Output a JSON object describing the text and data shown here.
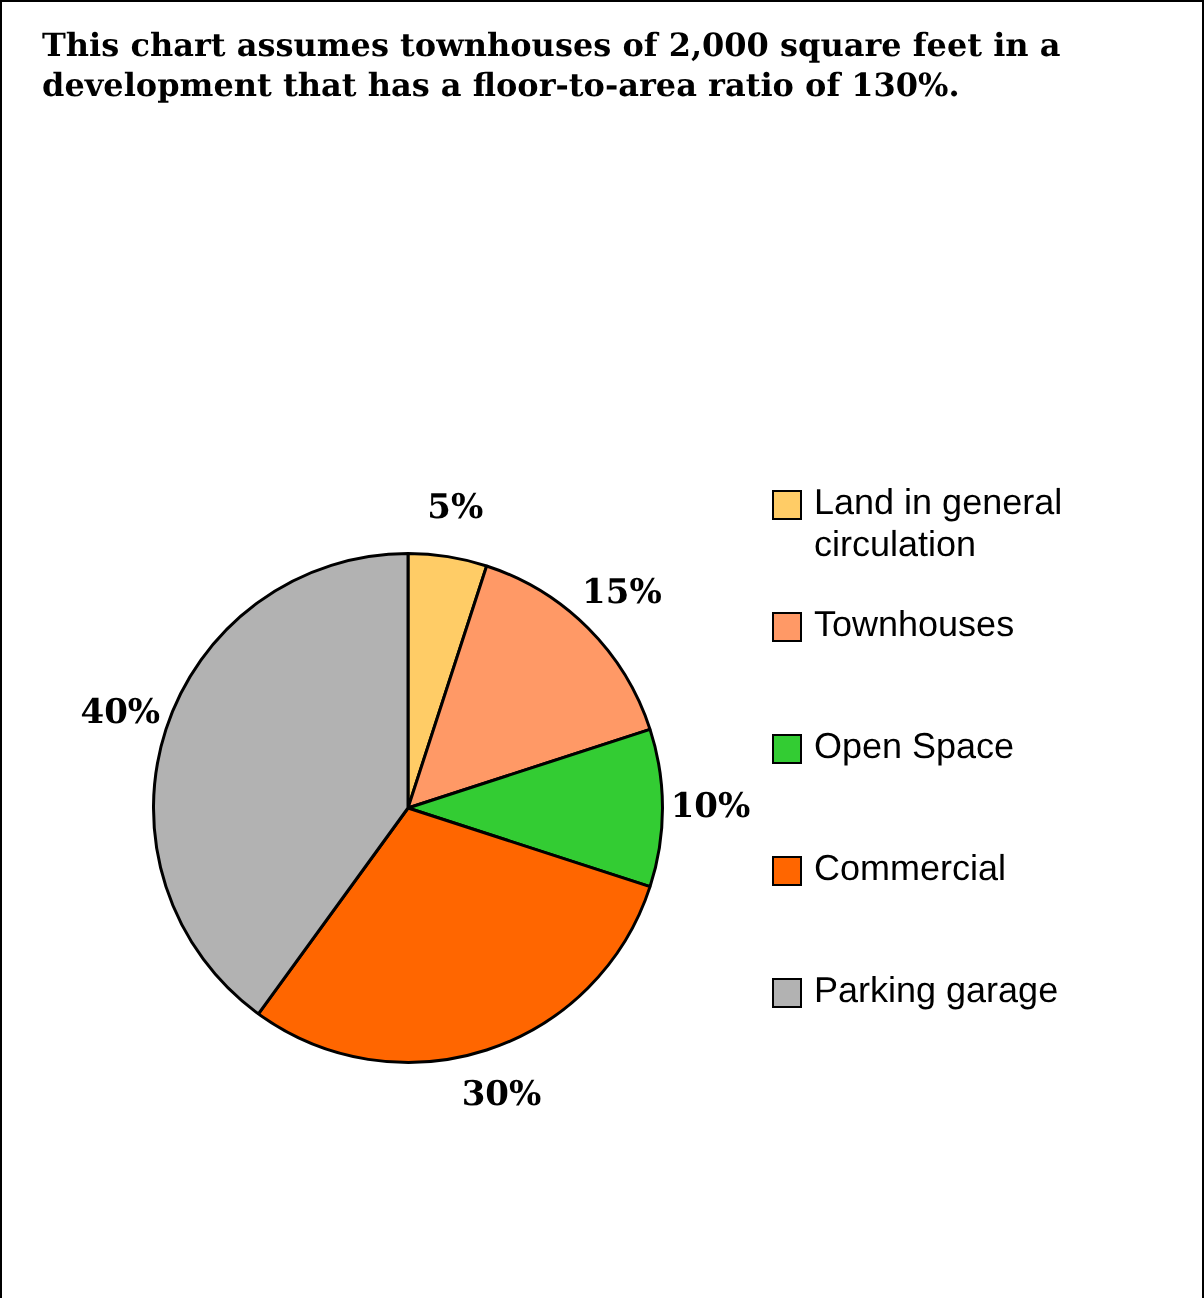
{
  "chart_data": {
    "type": "pie",
    "title": "This chart assumes townhouses of 2,000 square feet in a development that has a floor-to-area ratio of 130%.",
    "categories": [
      "Land in general circulation",
      "Townhouses",
      "Open Space",
      "Commercial",
      "Parking garage"
    ],
    "values": [
      5,
      15,
      10,
      30,
      40
    ],
    "colors": [
      "#ffcc66",
      "#ff9966",
      "#33cc33",
      "#ff6600",
      "#b2b2b2"
    ],
    "value_labels": [
      "5%",
      "15%",
      "10%",
      "30%",
      "40%"
    ],
    "legend": "right"
  }
}
